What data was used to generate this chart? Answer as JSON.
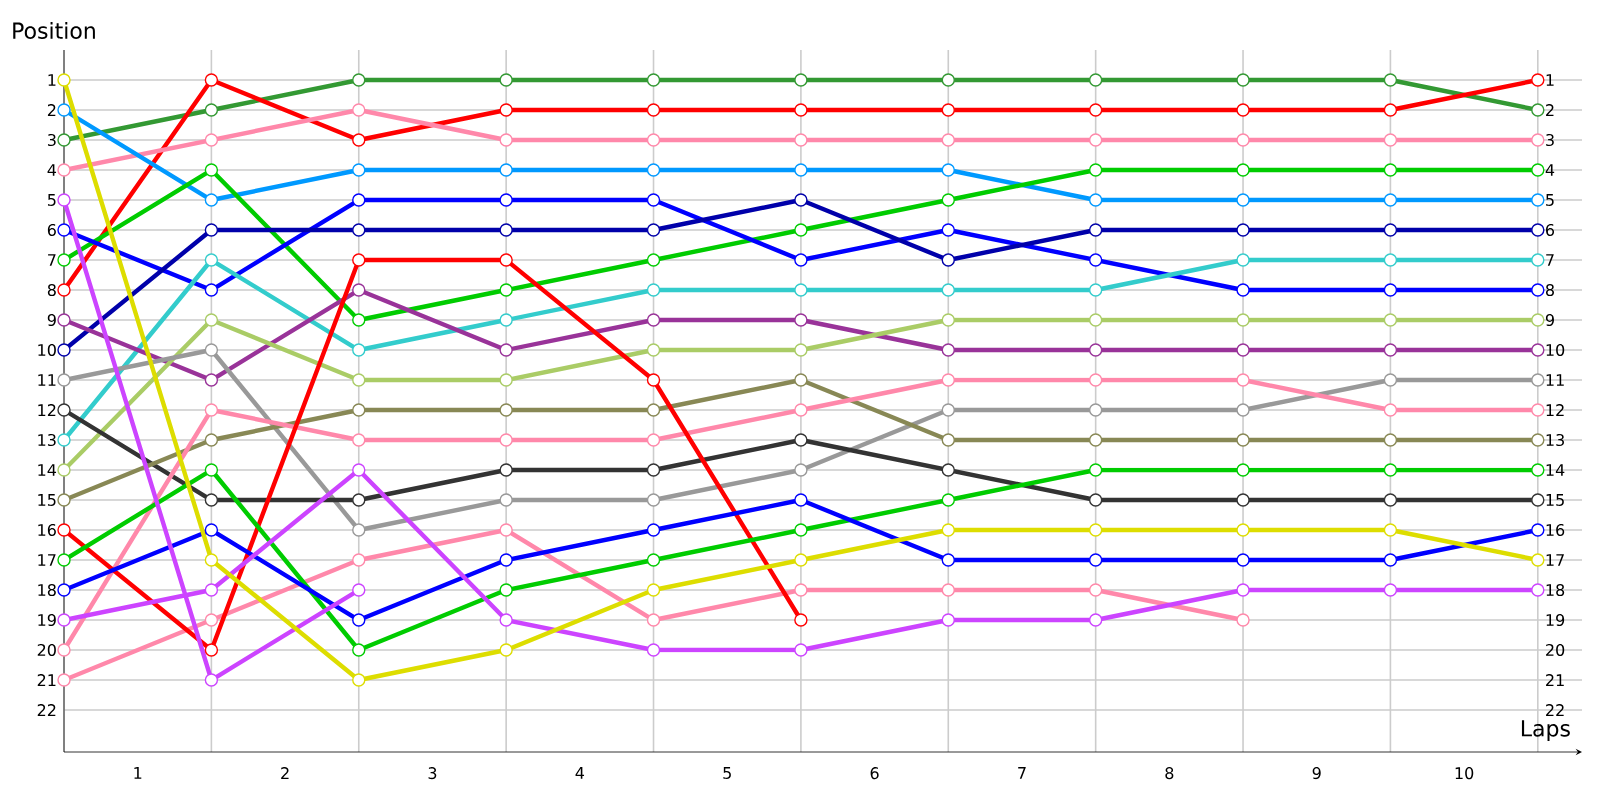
{
  "chart_data": {
    "type": "line",
    "xlabel": "Laps",
    "ylabel": "Position",
    "x": [
      0,
      1,
      2,
      3,
      4,
      5,
      6,
      7,
      8,
      9,
      10
    ],
    "xlim": [
      0,
      10.3
    ],
    "xticks": [
      {
        "value": 0,
        "label": null
      },
      {
        "value": 1,
        "label": null
      },
      {
        "value": 2,
        "label": null
      },
      {
        "value": 3,
        "label": null
      },
      {
        "value": 4,
        "label": null
      },
      {
        "value": 5,
        "label": null
      },
      {
        "value": 6,
        "label": null
      },
      {
        "value": 7,
        "label": null
      },
      {
        "value": 8,
        "label": null
      },
      {
        "value": 9,
        "label": null
      },
      {
        "value": 10,
        "label": null
      },
      {
        "value": 0.5,
        "label": "1"
      },
      {
        "value": 1.5,
        "label": "2"
      },
      {
        "value": 2.5,
        "label": "3"
      },
      {
        "value": 3.5,
        "label": "4"
      },
      {
        "value": 4.5,
        "label": "5"
      },
      {
        "value": 5.5,
        "label": "6"
      },
      {
        "value": 6.5,
        "label": "7"
      },
      {
        "value": 7.5,
        "label": "8"
      },
      {
        "value": 8.5,
        "label": "9"
      },
      {
        "value": 9.5,
        "label": "10"
      }
    ],
    "ylim": [
      23.4,
      0
    ],
    "yticks": [
      1,
      2,
      3,
      4,
      5,
      6,
      7,
      8,
      9,
      10,
      11,
      12,
      13,
      14,
      15,
      16,
      17,
      18,
      19,
      20,
      21,
      22
    ],
    "y2lim": [
      23.4,
      0
    ],
    "y2ticks": [
      1,
      2,
      3,
      4,
      5,
      6,
      7,
      8,
      9,
      10,
      11,
      12,
      13,
      14,
      15,
      16,
      17,
      18,
      19,
      20,
      21,
      22
    ],
    "grid": true,
    "marker": "circle",
    "line_style": "solid",
    "series": [
      {
        "color": "#339933",
        "values": [
          3,
          2,
          1,
          1,
          1,
          1,
          1,
          1,
          1,
          1,
          2
        ]
      },
      {
        "color": "#ff0000",
        "values": [
          8,
          1,
          3,
          2,
          2,
          2,
          2,
          2,
          2,
          2,
          1
        ]
      },
      {
        "color": "#ff88aa",
        "values": [
          4,
          3,
          2,
          3,
          3,
          3,
          3,
          3,
          3,
          3,
          3
        ]
      },
      {
        "color": "#0099ff",
        "values": [
          2,
          5,
          4,
          4,
          4,
          4,
          4,
          5,
          5,
          5,
          5
        ]
      },
      {
        "color": "#00cc00",
        "values": [
          7,
          4,
          9,
          8,
          7,
          6,
          5,
          4,
          4,
          4,
          4
        ]
      },
      {
        "color": "#0000ff",
        "values": [
          6,
          8,
          5,
          5,
          5,
          7,
          6,
          7,
          8,
          8,
          8
        ]
      },
      {
        "color": "#0000aa",
        "values": [
          10,
          6,
          6,
          6,
          6,
          5,
          7,
          6,
          6,
          6,
          6
        ]
      },
      {
        "color": "#33cccc",
        "values": [
          13,
          7,
          10,
          9,
          8,
          8,
          8,
          8,
          7,
          7,
          7
        ]
      },
      {
        "color": "#993399",
        "values": [
          9,
          11,
          8,
          10,
          9,
          9,
          10,
          10,
          10,
          10,
          10
        ]
      },
      {
        "color": "#aacc66",
        "values": [
          14,
          9,
          11,
          11,
          10,
          10,
          9,
          9,
          9,
          9,
          9
        ]
      },
      {
        "color": "#999999",
        "values": [
          11,
          10,
          16,
          15,
          15,
          14,
          12,
          12,
          12,
          11,
          11
        ]
      },
      {
        "color": "#333333",
        "values": [
          12,
          15,
          15,
          14,
          14,
          13,
          14,
          15,
          15,
          15,
          15
        ]
      },
      {
        "color": "#888855",
        "values": [
          15,
          13,
          12,
          12,
          12,
          11,
          13,
          13,
          13,
          13,
          13
        ]
      },
      {
        "color": "#ff88aa",
        "values": [
          20,
          12,
          13,
          13,
          13,
          12,
          11,
          11,
          11,
          12,
          12
        ]
      },
      {
        "color": "#ff88aa",
        "values": [
          21,
          19,
          17,
          16,
          19,
          18,
          18,
          18,
          19,
          null,
          null
        ]
      },
      {
        "color": "#ff0000",
        "values": [
          16,
          20,
          7,
          7,
          11,
          19,
          null,
          null,
          null,
          null,
          null
        ]
      },
      {
        "color": "#00cc00",
        "values": [
          17,
          14,
          20,
          18,
          17,
          16,
          15,
          14,
          14,
          14,
          14
        ]
      },
      {
        "color": "#0000ff",
        "values": [
          18,
          16,
          19,
          17,
          16,
          15,
          17,
          17,
          17,
          17,
          16
        ]
      },
      {
        "color": "#cc44ff",
        "values": [
          5,
          21,
          18,
          null,
          null,
          null,
          null,
          null,
          null,
          null,
          null
        ]
      },
      {
        "color": "#cc44ff",
        "values": [
          19,
          18,
          14,
          19,
          20,
          20,
          19,
          19,
          18,
          18,
          18
        ]
      },
      {
        "color": "#dddd00",
        "values": [
          1,
          17,
          21,
          20,
          18,
          17,
          16,
          16,
          16,
          16,
          17
        ]
      }
    ]
  }
}
